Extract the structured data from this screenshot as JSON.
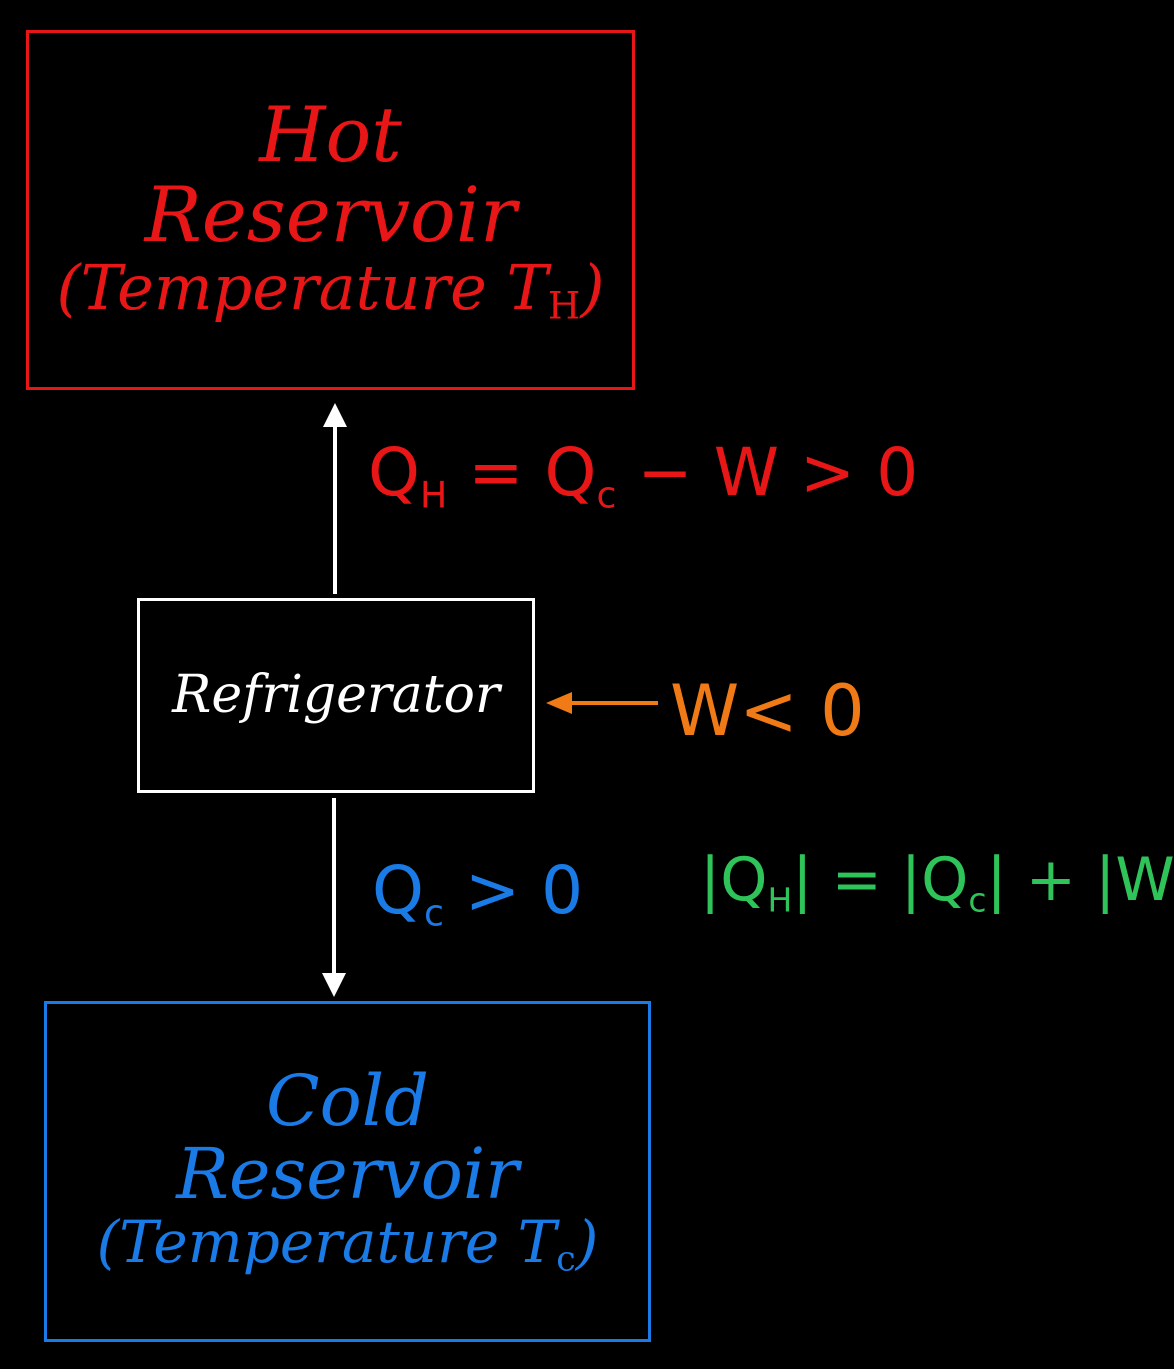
{
  "hot_reservoir": {
    "line1": "Hot",
    "line2": "Reservoir",
    "line3_prefix": "(Temperature T",
    "line3_sub": "H",
    "line3_suffix": ")",
    "color": "#e81616"
  },
  "refrigerator": {
    "label": "Refrigerator",
    "color": "#ffffff"
  },
  "cold_reservoir": {
    "line1": "Cold",
    "line2": "Reservoir",
    "line3_prefix": "(Temperature T",
    "line3_sub": "c",
    "line3_suffix": ")",
    "color": "#1a7ae6"
  },
  "heat_hot": {
    "prefix": "Q",
    "sub": "H",
    "suffix": " = Q",
    "sub2": "c",
    "rest": " − W > 0",
    "color": "#e81616"
  },
  "work": {
    "text": "W< 0",
    "color": "#f07a16"
  },
  "heat_cold": {
    "prefix": "Q",
    "sub": "c",
    "suffix": " > 0",
    "color": "#1a7ae6"
  },
  "energy_balance": {
    "part1": "|Q",
    "sub1": "H",
    "part2": "| = |Q",
    "sub2": "c",
    "part3": "| + |W|",
    "color": "#2fc45a"
  },
  "arrow_color": "#ffffff"
}
